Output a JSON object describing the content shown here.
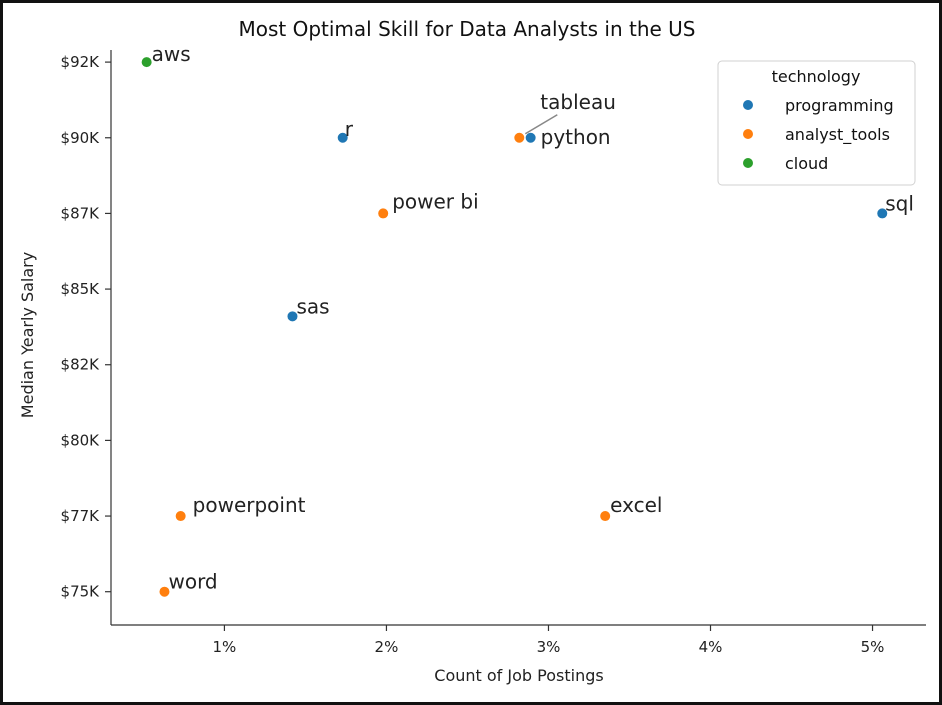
{
  "chart_data": {
    "type": "scatter",
    "title": "Most Optimal Skill for Data Analysts in the US",
    "xlabel": "Count of Job Postings",
    "ylabel": "Median Yearly Salary",
    "xlim": [
      0.003,
      0.0533
    ],
    "ylim": [
      73900,
      92900
    ],
    "x_ticks": [
      0.01,
      0.02,
      0.03,
      0.04,
      0.05
    ],
    "x_tick_labels": [
      "1%",
      "2%",
      "3%",
      "4%",
      "5%"
    ],
    "y_ticks": [
      75000,
      77500,
      80000,
      82500,
      85000,
      87500,
      90000,
      92500
    ],
    "y_tick_labels": [
      "$75K",
      "$77K",
      "$80K",
      "$82K",
      "$85K",
      "$87K",
      "$90K",
      "$92K"
    ],
    "grid": false,
    "legend": {
      "title": "technology",
      "placement": "top-right",
      "entries": [
        "programming",
        "analyst_tools",
        "cloud"
      ]
    },
    "colors": {
      "programming": "#1f77b4",
      "analyst_tools": "#ff7f0e",
      "cloud": "#2ca02c"
    },
    "points": [
      {
        "label": "aws",
        "x": 0.0052,
        "y": 92500,
        "technology": "cloud"
      },
      {
        "label": "r",
        "x": 0.0173,
        "y": 90000,
        "technology": "programming"
      },
      {
        "label": "tableau",
        "x": 0.0282,
        "y": 90000,
        "technology": "analyst_tools"
      },
      {
        "label": "python",
        "x": 0.0289,
        "y": 90000,
        "technology": "programming"
      },
      {
        "label": "power bi",
        "x": 0.0198,
        "y": 87500,
        "technology": "analyst_tools"
      },
      {
        "label": "sql",
        "x": 0.0506,
        "y": 87500,
        "technology": "programming"
      },
      {
        "label": "sas",
        "x": 0.0142,
        "y": 84100,
        "technology": "programming"
      },
      {
        "label": "powerpoint",
        "x": 0.0073,
        "y": 77500,
        "technology": "analyst_tools"
      },
      {
        "label": "excel",
        "x": 0.0335,
        "y": 77500,
        "technology": "analyst_tools"
      },
      {
        "label": "word",
        "x": 0.0063,
        "y": 75000,
        "technology": "analyst_tools"
      }
    ]
  }
}
